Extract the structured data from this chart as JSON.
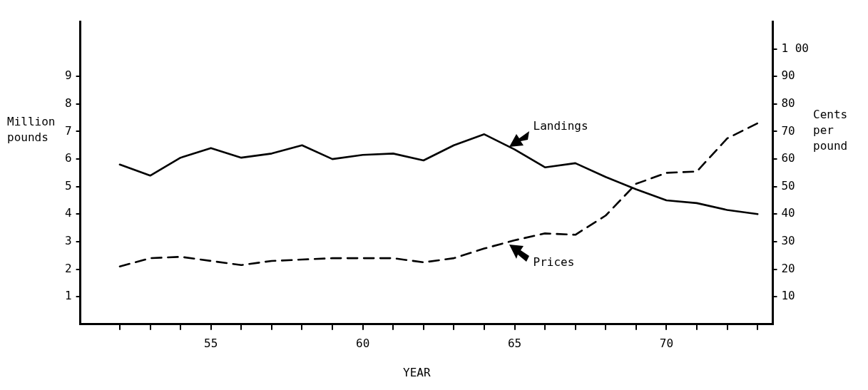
{
  "chart_data": {
    "type": "line",
    "xlabel": "YEAR",
    "ylabel": "Million\npounds",
    "y2label": "Cents\nper\npound",
    "x": [
      52,
      53,
      54,
      55,
      56,
      57,
      58,
      59,
      60,
      61,
      62,
      63,
      64,
      65,
      66,
      67,
      68,
      69,
      70,
      71,
      72,
      73
    ],
    "series": [
      {
        "name": "Landings",
        "color": "#000000",
        "line_style": "solid",
        "values": [
          5.8,
          5.4,
          6.05,
          6.4,
          6.05,
          6.2,
          6.5,
          6.0,
          6.15,
          6.2,
          5.95,
          6.5,
          6.9,
          6.35,
          5.7,
          5.85,
          5.35,
          4.9,
          4.5,
          4.4,
          4.15,
          4.0
        ]
      },
      {
        "name": "Prices",
        "color": "#000000",
        "line_style": "dashed",
        "axis": "y2",
        "values": [
          21,
          24,
          24.5,
          23,
          21.5,
          23,
          23.5,
          24,
          24,
          24,
          22.5,
          24,
          27.5,
          30.5,
          33,
          32.5,
          39.5,
          51,
          55,
          55.5,
          67.5,
          73
        ]
      }
    ],
    "xlim": [
      50.7,
      73.5
    ],
    "xticks": [
      {
        "value": 52,
        "label": null
      },
      {
        "value": 53,
        "label": null
      },
      {
        "value": 54,
        "label": null
      },
      55,
      {
        "value": 56,
        "label": null
      },
      {
        "value": 57,
        "label": null
      },
      {
        "value": 58,
        "label": null
      },
      {
        "value": 59,
        "label": null
      },
      60,
      {
        "value": 61,
        "label": null
      },
      {
        "value": 62,
        "label": null
      },
      {
        "value": 63,
        "label": null
      },
      {
        "value": 64,
        "label": null
      },
      65,
      {
        "value": 66,
        "label": null
      },
      {
        "value": 67,
        "label": null
      },
      {
        "value": 68,
        "label": null
      },
      {
        "value": 69,
        "label": null
      },
      70,
      {
        "value": 71,
        "label": null
      },
      {
        "value": 72,
        "label": null
      },
      {
        "value": 73,
        "label": null
      }
    ],
    "ylim": [
      0,
      11
    ],
    "yticks": [
      1,
      2,
      3,
      4,
      5,
      6,
      7,
      8,
      9
    ],
    "y2lim": [
      0,
      110
    ],
    "y2ticks": [
      10,
      20,
      30,
      40,
      50,
      60,
      70,
      80,
      90,
      {
        "value": 100,
        "label": "1 00"
      }
    ],
    "grid": false,
    "legend": false,
    "marker": "none"
  }
}
